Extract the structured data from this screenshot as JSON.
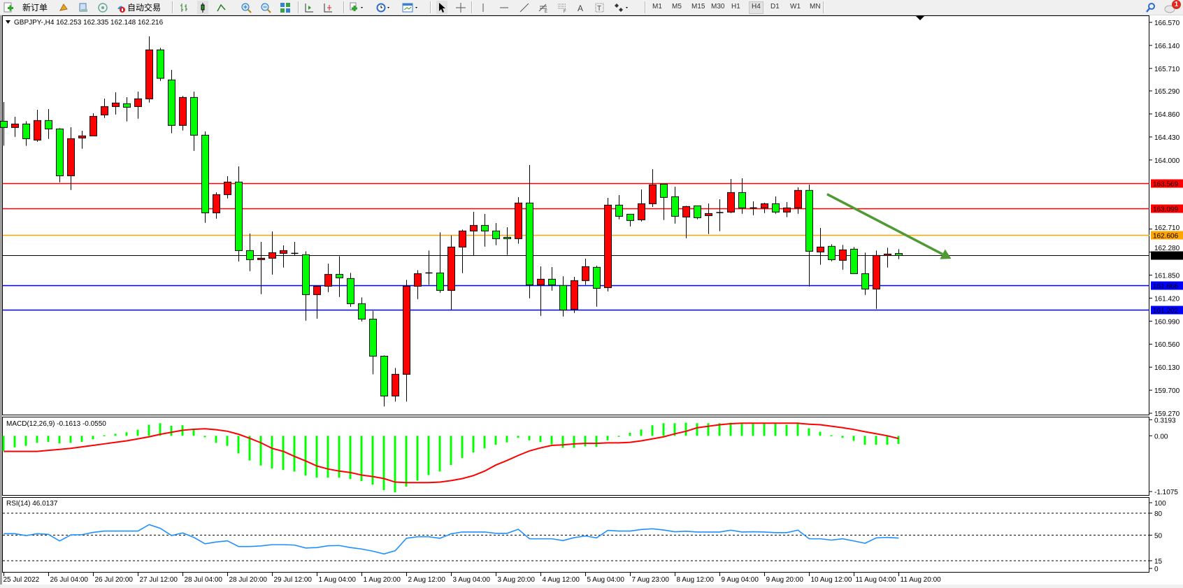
{
  "toolbar": {
    "new_order": "新订单",
    "auto_trading": "自动交易",
    "timeframes": [
      "M1",
      "M5",
      "M15",
      "M30",
      "H1",
      "H4",
      "D1",
      "W1",
      "MN"
    ],
    "active_timeframe": "H4",
    "notification_count": "1",
    "icons": [
      "new-order-icon",
      "market-watch-icon",
      "navigator-icon",
      "signals-icon",
      "auto-trading-icon",
      "bar-chart-icon",
      "candlestick-icon",
      "line-chart-icon",
      "zoom-in-icon",
      "zoom-out-icon",
      "tile-windows-icon",
      "auto-scroll-icon",
      "chart-shift-icon",
      "indicators-icon",
      "periods-icon",
      "templates-icon",
      "cursor-icon",
      "crosshair-icon",
      "vertical-line-icon",
      "horizontal-line-icon",
      "trendline-icon",
      "fibonacci-icon",
      "fibo-fan-icon",
      "text-icon",
      "text-label-icon",
      "arrows-icon",
      "search-icon",
      "notifications-icon"
    ]
  },
  "chart": {
    "symbol_info": "GBPJPY-,H4  162.253 162.335 162.148 162.216"
  },
  "chart_data": {
    "type": "candlestick",
    "symbol": "GBPJPY-",
    "timeframe": "H4",
    "bull_color": "#ff0000",
    "bear_color": "#00ff00",
    "price_range": [
      159.27,
      166.57
    ],
    "price_ticks": [
      "166.570",
      "166.140",
      "165.710",
      "165.290",
      "164.860",
      "164.430",
      "164.000",
      "162.710",
      "162.280",
      "161.850",
      "161.420",
      "160.990",
      "160.560",
      "160.130",
      "159.700",
      "159.270"
    ],
    "x_labels": [
      {
        "bar": 0,
        "text": "25 Jul 2022"
      },
      {
        "bar": 4,
        "text": "26 Jul 04:00"
      },
      {
        "bar": 8,
        "text": "26 Jul 20:00"
      },
      {
        "bar": 12,
        "text": "27 Jul 12:00"
      },
      {
        "bar": 16,
        "text": "28 Jul 04:00"
      },
      {
        "bar": 20,
        "text": "28 Jul 20:00"
      },
      {
        "bar": 24,
        "text": "29 Jul 12:00"
      },
      {
        "bar": 28,
        "text": "1 Aug 04:00"
      },
      {
        "bar": 32,
        "text": "1 Aug 20:00"
      },
      {
        "bar": 36,
        "text": "2 Aug 12:00"
      },
      {
        "bar": 40,
        "text": "3 Aug 04:00"
      },
      {
        "bar": 44,
        "text": "3 Aug 20:00"
      },
      {
        "bar": 48,
        "text": "4 Aug 12:00"
      },
      {
        "bar": 52,
        "text": "5 Aug 04:00"
      },
      {
        "bar": 56,
        "text": "7 Aug 23:00"
      },
      {
        "bar": 60,
        "text": "8 Aug 12:00"
      },
      {
        "bar": 64,
        "text": "9 Aug 04:00"
      },
      {
        "bar": 68,
        "text": "9 Aug 20:00"
      },
      {
        "bar": 72,
        "text": "10 Aug 12:00"
      },
      {
        "bar": 76,
        "text": "11 Aug 04:00"
      },
      {
        "bar": 80,
        "text": "11 Aug 20:00"
      }
    ],
    "hlines": [
      {
        "price": 163.569,
        "label": "163.569",
        "color": "#ff0000"
      },
      {
        "price": 163.099,
        "label": "163.099",
        "color": "#ff0000"
      },
      {
        "price": 162.606,
        "label": "162.606",
        "color": "#ffa500"
      },
      {
        "price": 162.216,
        "label": "162.216",
        "color": "#000000"
      },
      {
        "price": 161.666,
        "label": "161.666",
        "color": "#0000ff"
      },
      {
        "price": 161.202,
        "label": "161.202",
        "color": "#0000ff"
      }
    ],
    "trend_arrow": {
      "from": [
        73.6,
        163.362
      ],
      "to": [
        84.7,
        162.156
      ],
      "color": "#4f9a35"
    },
    "ohlc": [
      [
        164.724,
        165.081,
        164.267,
        164.607
      ],
      [
        164.607,
        164.807,
        164.432,
        164.672
      ],
      [
        164.672,
        164.724,
        164.263,
        164.398
      ],
      [
        164.372,
        164.937,
        164.341,
        164.737
      ],
      [
        164.737,
        164.95,
        164.393,
        164.58
      ],
      [
        164.58,
        164.593,
        163.583,
        163.705
      ],
      [
        163.705,
        164.611,
        163.44,
        164.398
      ],
      [
        164.411,
        164.546,
        164.21,
        164.45
      ],
      [
        164.45,
        164.872,
        164.45,
        164.815
      ],
      [
        164.842,
        165.146,
        164.785,
        164.998
      ],
      [
        164.998,
        165.264,
        164.85,
        165.064
      ],
      [
        165.051,
        165.172,
        164.72,
        164.985
      ],
      [
        164.998,
        165.277,
        164.772,
        165.142
      ],
      [
        165.142,
        166.309,
        165.072,
        166.056
      ],
      [
        166.056,
        166.095,
        165.477,
        165.525
      ],
      [
        165.495,
        165.682,
        164.498,
        164.646
      ],
      [
        164.646,
        165.194,
        164.55,
        165.168
      ],
      [
        165.168,
        165.277,
        164.171,
        164.463
      ],
      [
        164.463,
        164.533,
        162.826,
        163.013
      ],
      [
        163.013,
        163.396,
        162.904,
        163.353
      ],
      [
        163.353,
        163.697,
        163.283,
        163.588
      ],
      [
        163.588,
        163.88,
        162.104,
        162.308
      ],
      [
        162.308,
        162.626,
        161.925,
        162.139
      ],
      [
        162.139,
        162.469,
        161.494,
        162.165
      ],
      [
        162.165,
        162.665,
        161.86,
        162.269
      ],
      [
        162.256,
        162.404,
        161.99,
        162.308
      ],
      [
        162.256,
        162.469,
        162.208,
        162.256
      ],
      [
        162.23,
        162.295,
        160.998,
        161.485
      ],
      [
        161.485,
        161.642,
        161.037,
        161.642
      ],
      [
        161.642,
        162.064,
        161.533,
        161.864
      ],
      [
        161.864,
        162.204,
        161.442,
        161.799
      ],
      [
        161.786,
        161.89,
        161.259,
        161.316
      ],
      [
        161.316,
        161.433,
        160.985,
        161.028
      ],
      [
        161.028,
        161.181,
        159.997,
        160.336
      ],
      [
        160.336,
        160.349,
        159.396,
        159.592
      ],
      [
        159.592,
        160.114,
        159.487,
        159.997
      ],
      [
        159.997,
        161.76,
        159.487,
        161.642
      ],
      [
        161.642,
        161.943,
        161.403,
        161.877
      ],
      [
        161.89,
        162.308,
        161.668,
        161.89
      ],
      [
        161.89,
        162.648,
        161.52,
        161.564
      ],
      [
        161.564,
        162.591,
        161.198,
        162.374
      ],
      [
        162.374,
        162.7,
        161.886,
        162.674
      ],
      [
        162.674,
        163.031,
        162.208,
        162.778
      ],
      [
        162.778,
        162.992,
        162.382,
        162.674
      ],
      [
        162.674,
        162.822,
        162.408,
        162.53
      ],
      [
        162.556,
        162.744,
        162.226,
        162.53
      ],
      [
        162.53,
        163.305,
        162.435,
        163.196
      ],
      [
        163.196,
        163.906,
        161.416,
        161.668
      ],
      [
        161.668,
        162.012,
        161.089,
        161.773
      ],
      [
        161.773,
        161.999,
        161.559,
        161.668
      ],
      [
        161.655,
        161.829,
        161.076,
        161.198
      ],
      [
        161.211,
        161.816,
        161.142,
        161.747
      ],
      [
        161.747,
        162.156,
        161.668,
        162.008
      ],
      [
        161.995,
        162.025,
        161.259,
        161.603
      ],
      [
        161.616,
        163.292,
        161.546,
        163.157
      ],
      [
        163.157,
        163.344,
        162.892,
        162.948
      ],
      [
        162.987,
        162.987,
        162.761,
        162.87
      ],
      [
        162.883,
        163.449,
        162.852,
        163.183
      ],
      [
        163.183,
        163.828,
        163.122,
        163.536
      ],
      [
        163.549,
        163.549,
        162.879,
        163.301
      ],
      [
        163.314,
        163.501,
        162.813,
        162.948
      ],
      [
        162.935,
        163.144,
        162.539,
        163.131
      ],
      [
        163.144,
        163.144,
        162.892,
        162.922
      ],
      [
        162.961,
        163.188,
        162.617,
        163.0
      ],
      [
        163.018,
        163.266,
        162.67,
        163.018
      ],
      [
        163.027,
        163.645,
        163.009,
        163.392
      ],
      [
        163.392,
        163.658,
        162.996,
        163.105
      ],
      [
        163.105,
        163.227,
        162.97,
        163.105
      ],
      [
        163.105,
        163.201,
        163.009,
        163.183
      ],
      [
        163.183,
        163.318,
        162.996,
        163.027
      ],
      [
        163.027,
        163.214,
        162.931,
        163.105
      ],
      [
        163.105,
        163.488,
        162.996,
        163.432
      ],
      [
        163.432,
        163.54,
        161.638,
        162.295
      ],
      [
        162.282,
        162.731,
        162.043,
        162.374
      ],
      [
        162.387,
        162.426,
        162.108,
        162.139
      ],
      [
        162.126,
        162.413,
        161.951,
        162.321
      ],
      [
        162.334,
        162.374,
        161.877,
        161.877
      ],
      [
        161.877,
        162.269,
        161.481,
        161.59
      ],
      [
        161.59,
        162.308,
        161.22,
        162.217
      ],
      [
        162.217,
        162.361,
        161.99,
        162.243
      ],
      [
        162.253,
        162.335,
        162.148,
        162.216
      ]
    ]
  },
  "macd": {
    "label": "MACD(12,26,9) -0.1613 -0.0550",
    "ticks": [
      {
        "v": 0.3193,
        "t": "0.3193"
      },
      {
        "v": 0,
        "t": "0.00"
      },
      {
        "v": -1.1075,
        "t": "-1.1075"
      }
    ],
    "histogram_color": "#00ff00",
    "signal_color": "#ff0000",
    "histogram": [
      -0.3,
      -0.23,
      -0.2,
      -0.14,
      -0.12,
      -0.15,
      -0.14,
      -0.12,
      -0.07,
      0.01,
      0.04,
      0.07,
      0.12,
      0.22,
      0.25,
      0.2,
      0.21,
      0.14,
      -0.03,
      -0.14,
      -0.2,
      -0.35,
      -0.49,
      -0.59,
      -0.65,
      -0.68,
      -0.71,
      -0.79,
      -0.83,
      -0.83,
      -0.83,
      -0.86,
      -0.9,
      -0.97,
      -1.08,
      -1.125,
      -1.01,
      -0.89,
      -0.78,
      -0.71,
      -0.58,
      -0.44,
      -0.33,
      -0.25,
      -0.18,
      -0.13,
      -0.04,
      -0.09,
      -0.125,
      -0.17,
      -0.24,
      -0.24,
      -0.21,
      -0.22,
      -0.09,
      -0.01,
      0.06,
      0.125,
      0.21,
      0.25,
      0.25,
      0.26,
      0.25,
      0.25,
      0.25,
      0.26,
      0.25,
      0.25,
      0.25,
      0.25,
      0.22,
      0.24,
      0.15,
      0.08,
      0.01,
      -0.04,
      -0.1,
      -0.18,
      -0.18,
      -0.18,
      -0.1613
    ],
    "signal": [
      -0.31,
      -0.31,
      -0.31,
      -0.31,
      -0.29,
      -0.27,
      -0.25,
      -0.22,
      -0.19,
      -0.16,
      -0.13,
      -0.1,
      -0.06,
      -0.02,
      0.03,
      0.07,
      0.11,
      0.13,
      0.14,
      0.12,
      0.09,
      0.03,
      -0.05,
      -0.14,
      -0.25,
      -0.31,
      -0.41,
      -0.5,
      -0.6,
      -0.66,
      -0.7,
      -0.73,
      -0.78,
      -0.81,
      -0.85,
      -0.92,
      -0.93,
      -0.93,
      -0.93,
      -0.92,
      -0.89,
      -0.85,
      -0.79,
      -0.7,
      -0.58,
      -0.49,
      -0.39,
      -0.3,
      -0.24,
      -0.19,
      -0.18,
      -0.16,
      -0.15,
      -0.15,
      -0.14,
      -0.14,
      -0.13,
      -0.1,
      -0.06,
      -0.02,
      0.04,
      0.09,
      0.16,
      0.19,
      0.22,
      0.24,
      0.25,
      0.25,
      0.25,
      0.25,
      0.25,
      0.25,
      0.23,
      0.22,
      0.19,
      0.16,
      0.125,
      0.08,
      0.04,
      0.0,
      -0.055
    ]
  },
  "rsi": {
    "label": "RSI(14) 46.0137",
    "ticks": [
      "100",
      "80",
      "50",
      "15",
      "0"
    ],
    "levels": [
      80,
      50,
      15
    ],
    "line_color": "#1e90ff",
    "values": [
      52,
      52,
      49.4,
      52,
      51,
      42,
      50.3,
      50.6,
      53.8,
      55.6,
      55.6,
      55.6,
      55.6,
      64.4,
      59.4,
      49.4,
      53,
      46.9,
      38.1,
      40.6,
      42.2,
      34.4,
      34.4,
      35.3,
      37,
      37,
      36.4,
      32.4,
      33,
      35.5,
      35.8,
      33,
      31,
      28,
      24.3,
      28.7,
      45.7,
      47.8,
      47.8,
      45.7,
      51.9,
      54.3,
      54.3,
      54.3,
      52.5,
      52.5,
      58,
      45,
      45,
      45,
      42.6,
      46.6,
      48.8,
      46.3,
      56.5,
      55.6,
      55.6,
      57.7,
      58.7,
      57,
      54.6,
      55.3,
      54.3,
      54.3,
      54.3,
      56.8,
      54.3,
      54.6,
      54.3,
      53.4,
      53.4,
      56.8,
      45,
      45,
      43.2,
      45,
      42,
      38.9,
      46.3,
      46.9,
      46.0137
    ]
  }
}
